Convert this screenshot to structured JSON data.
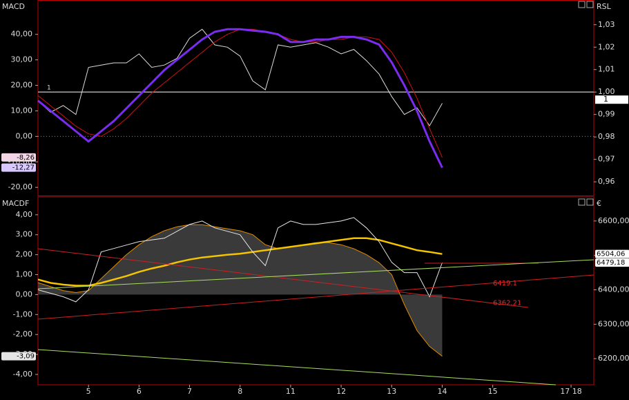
{
  "chart_data": [
    {
      "type": "line",
      "title": "MACD",
      "right_title": "RSL",
      "x": [
        0,
        0.25,
        0.5,
        0.75,
        1,
        1.25,
        1.5,
        1.75,
        2,
        2.25,
        2.5,
        2.75,
        3,
        3.25,
        3.5,
        3.75,
        4,
        4.25,
        4.5,
        4.75,
        5,
        5.25,
        5.5,
        5.75,
        6,
        6.25,
        6.5,
        6.75,
        7,
        7.25,
        7.5,
        7.75,
        8
      ],
      "xlim": [
        0,
        11
      ],
      "ylim": [
        -23.2,
        53.2
      ],
      "yticks": [
        {
          "value": 40,
          "label": "40,00"
        },
        {
          "value": 30,
          "label": "30,00"
        },
        {
          "value": 20,
          "label": "20,00"
        },
        {
          "value": 10,
          "label": "10,00"
        },
        {
          "value": 0,
          "label": "0,00"
        },
        {
          "value": -10,
          "label": "-10,00"
        },
        {
          "value": -20,
          "label": "-20,00"
        }
      ],
      "y2lim": [
        0.9539,
        1.0407
      ],
      "y2ticks": [
        {
          "value": 1.03,
          "label": "1,03"
        },
        {
          "value": 1.02,
          "label": "1,02"
        },
        {
          "value": 1.01,
          "label": "1,01"
        },
        {
          "value": 1.0,
          "label": "1,00"
        },
        {
          "value": 0.99,
          "label": "0,99"
        },
        {
          "value": 0.98,
          "label": "0,98"
        },
        {
          "value": 0.97,
          "label": "0,97"
        },
        {
          "value": 0.96,
          "label": "0,96"
        }
      ],
      "zero_line": true,
      "hline": {
        "value": 1.0,
        "label": "1",
        "axis": "y2"
      },
      "series": [
        {
          "color": "#dddddd",
          "axis": "y2",
          "values": [
            0.996,
            0.991,
            0.994,
            0.99,
            1.011,
            1.012,
            1.013,
            1.013,
            1.017,
            1.011,
            1.012,
            1.015,
            1.024,
            1.028,
            1.021,
            1.02,
            1.016,
            1.005,
            1.001,
            1.021,
            1.02,
            1.021,
            1.022,
            1.02,
            1.017,
            1.019,
            1.014,
            1.008,
            0.998,
            0.99,
            0.993,
            0.985,
            0.995
          ]
        },
        {
          "color": "#d01010",
          "axis": "y",
          "end_label": "-8,26",
          "label_bg": "#f2d6e6",
          "values": [
            16,
            12,
            8,
            4,
            1,
            0,
            3,
            7,
            12,
            17,
            21,
            25,
            29,
            33,
            37,
            40,
            42,
            42,
            41,
            40,
            38,
            37,
            37,
            38,
            38,
            39,
            39,
            38,
            33,
            25,
            15,
            3,
            -8.26
          ]
        },
        {
          "color": "#7a2cf0",
          "axis": "y",
          "width": 3,
          "end_label": "-12,27",
          "label_bg": "#d8c8ff",
          "values": [
            14,
            10,
            6,
            2,
            -2,
            2,
            6,
            11,
            16,
            21,
            26,
            30,
            34,
            38,
            41,
            42,
            42,
            41.5,
            41,
            40,
            37,
            37,
            38,
            38,
            39,
            39,
            38,
            36,
            29,
            20,
            10,
            -2,
            -12.27
          ]
        }
      ]
    },
    {
      "type": "line",
      "title": "MACDF",
      "right_title": "€",
      "x": [
        0,
        0.25,
        0.5,
        0.75,
        1,
        1.25,
        1.5,
        1.75,
        2,
        2.25,
        2.5,
        2.75,
        3,
        3.25,
        3.5,
        3.75,
        4,
        4.25,
        4.5,
        4.75,
        5,
        5.25,
        5.5,
        5.75,
        6,
        6.25,
        6.5,
        6.75,
        7,
        7.25,
        7.5,
        7.75,
        8
      ],
      "xlim": [
        0,
        11
      ],
      "xticks": [
        {
          "value": 1,
          "label": "5"
        },
        {
          "value": 2,
          "label": "6"
        },
        {
          "value": 3,
          "label": "7"
        },
        {
          "value": 4,
          "label": "8"
        },
        {
          "value": 5,
          "label": "11"
        },
        {
          "value": 6,
          "label": "12"
        },
        {
          "value": 7,
          "label": "13"
        },
        {
          "value": 8,
          "label": "14"
        },
        {
          "value": 9,
          "label": "15"
        },
        {
          "value": 10.55,
          "label": "17 18"
        }
      ],
      "ylim": [
        -4.52,
        4.86
      ],
      "yticks": [
        {
          "value": 4,
          "label": "4,00"
        },
        {
          "value": 3,
          "label": "3,00"
        },
        {
          "value": 2,
          "label": "2,00"
        },
        {
          "value": 1,
          "label": "1,00"
        },
        {
          "value": 0,
          "label": "0,00"
        },
        {
          "value": -1,
          "label": "-1,00"
        },
        {
          "value": -2,
          "label": "-2,00"
        },
        {
          "value": -3,
          "label": "-3,00"
        },
        {
          "value": -4,
          "label": "-4,00"
        }
      ],
      "y2lim": [
        6124,
        6668
      ],
      "y2ticks": [
        {
          "value": 6600,
          "label": "6600,00"
        },
        {
          "value": 6500,
          "label": "6500,00"
        },
        {
          "value": 6400,
          "label": "6400,00"
        },
        {
          "value": 6300,
          "label": "6300,00"
        },
        {
          "value": 6200,
          "label": "6200,00"
        }
      ],
      "series": [
        {
          "color": "#e08a00",
          "fill": "#3a3a3a",
          "axis": "y",
          "end_label": "-3,09",
          "label_bg": "#e6e6e6",
          "values": [
            0.6,
            0.4,
            0.2,
            0.1,
            0.2,
            0.8,
            1.4,
            2.0,
            2.5,
            2.9,
            3.2,
            3.4,
            3.5,
            3.5,
            3.4,
            3.3,
            3.2,
            3.0,
            2.5,
            2.3,
            2.4,
            2.5,
            2.6,
            2.6,
            2.5,
            2.3,
            2.0,
            1.6,
            1.0,
            -0.5,
            -1.8,
            -2.6,
            -3.09
          ]
        },
        {
          "color": "#f5c400",
          "axis": "y2",
          "width": 2.5,
          "end_label": "6504,06",
          "label_bg": "#ffffff",
          "values": [
            6430,
            6420,
            6415,
            6412,
            6412,
            6420,
            6430,
            6440,
            6452,
            6462,
            6470,
            6480,
            6488,
            6494,
            6498,
            6502,
            6505,
            6510,
            6515,
            6520,
            6525,
            6530,
            6535,
            6540,
            6545,
            6550,
            6550,
            6545,
            6535,
            6525,
            6515,
            6510,
            6504.06
          ]
        },
        {
          "color": "#e8e8e8",
          "axis": "y2",
          "end_label": "6479,18",
          "label_bg": "#ffffff",
          "values": [
            6400,
            6390,
            6380,
            6365,
            6400,
            6510,
            6520,
            6530,
            6540,
            6545,
            6550,
            6570,
            6590,
            6600,
            6580,
            6570,
            6560,
            6510,
            6470,
            6580,
            6600,
            6590,
            6590,
            6595,
            6600,
            6610,
            6580,
            6540,
            6480,
            6450,
            6450,
            6380,
            6479.18
          ]
        }
      ],
      "annotations": [
        {
          "text": "6419.1",
          "value": 6419.1,
          "axis": "y2"
        },
        {
          "text": "6362.21",
          "value": 6362.21,
          "axis": "y2"
        }
      ]
    }
  ]
}
